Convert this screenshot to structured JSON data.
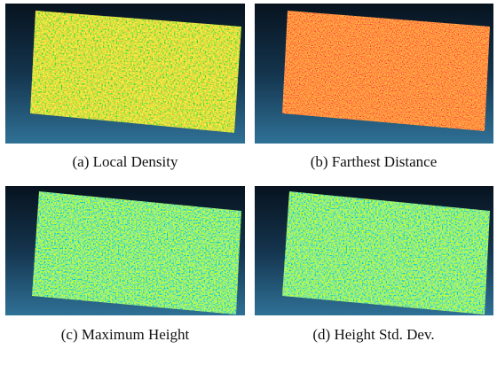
{
  "panels": [
    {
      "caption": "(a) Local Density"
    },
    {
      "caption": "(b) Farthest Distance"
    },
    {
      "caption": "(c) Maximum Height"
    },
    {
      "caption": "(d) Height Std. Dev."
    }
  ]
}
